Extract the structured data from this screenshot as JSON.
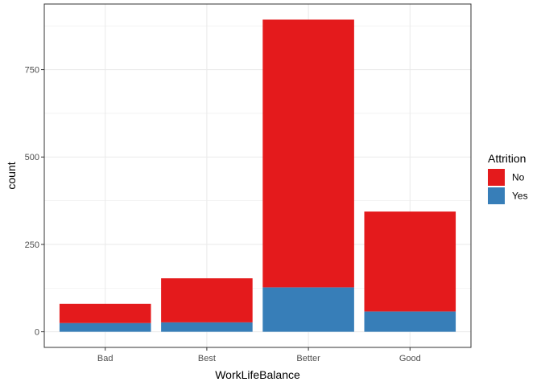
{
  "chart_data": {
    "type": "bar",
    "stacked": true,
    "categories": [
      "Bad",
      "Best",
      "Better",
      "Good"
    ],
    "series": [
      {
        "name": "No",
        "values": [
          55,
          126,
          766,
          286
        ],
        "color": "#E41A1C"
      },
      {
        "name": "Yes",
        "values": [
          25,
          27,
          127,
          58
        ],
        "color": "#377EB8"
      }
    ],
    "title": "",
    "xlabel": "WorkLifeBalance",
    "ylabel": "count",
    "ylim": [
      -44.65,
      937.65
    ],
    "yticks": [
      0,
      250,
      500,
      750
    ],
    "ytick_labels": [
      "0",
      "250",
      "500",
      "750"
    ],
    "grid": true,
    "legend": {
      "title": "Attrition",
      "position": "right"
    }
  }
}
